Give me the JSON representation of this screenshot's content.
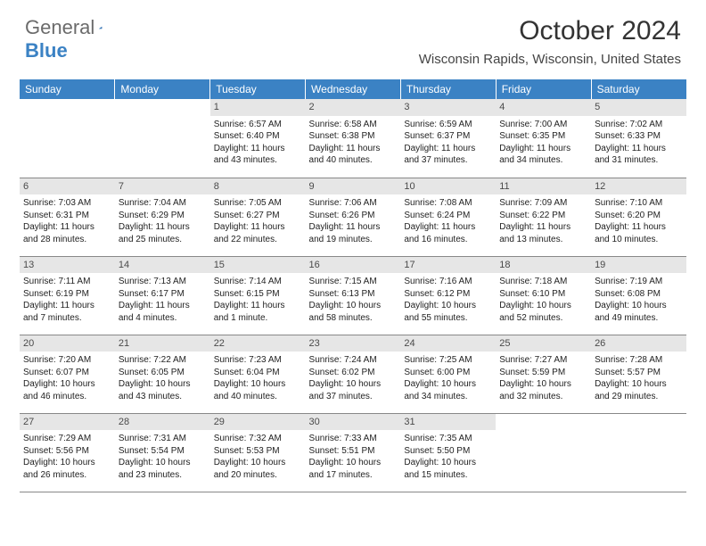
{
  "brand": {
    "text1": "General",
    "text2": "Blue"
  },
  "title": "October 2024",
  "location": "Wisconsin Rapids, Wisconsin, United States",
  "colors": {
    "header_bg": "#3b82c4",
    "daynum_bg": "#e6e6e6"
  },
  "day_headers": [
    "Sunday",
    "Monday",
    "Tuesday",
    "Wednesday",
    "Thursday",
    "Friday",
    "Saturday"
  ],
  "weeks": [
    [
      null,
      null,
      {
        "n": "1",
        "sr": "Sunrise: 6:57 AM",
        "ss": "Sunset: 6:40 PM",
        "dl": "Daylight: 11 hours and 43 minutes."
      },
      {
        "n": "2",
        "sr": "Sunrise: 6:58 AM",
        "ss": "Sunset: 6:38 PM",
        "dl": "Daylight: 11 hours and 40 minutes."
      },
      {
        "n": "3",
        "sr": "Sunrise: 6:59 AM",
        "ss": "Sunset: 6:37 PM",
        "dl": "Daylight: 11 hours and 37 minutes."
      },
      {
        "n": "4",
        "sr": "Sunrise: 7:00 AM",
        "ss": "Sunset: 6:35 PM",
        "dl": "Daylight: 11 hours and 34 minutes."
      },
      {
        "n": "5",
        "sr": "Sunrise: 7:02 AM",
        "ss": "Sunset: 6:33 PM",
        "dl": "Daylight: 11 hours and 31 minutes."
      }
    ],
    [
      {
        "n": "6",
        "sr": "Sunrise: 7:03 AM",
        "ss": "Sunset: 6:31 PM",
        "dl": "Daylight: 11 hours and 28 minutes."
      },
      {
        "n": "7",
        "sr": "Sunrise: 7:04 AM",
        "ss": "Sunset: 6:29 PM",
        "dl": "Daylight: 11 hours and 25 minutes."
      },
      {
        "n": "8",
        "sr": "Sunrise: 7:05 AM",
        "ss": "Sunset: 6:27 PM",
        "dl": "Daylight: 11 hours and 22 minutes."
      },
      {
        "n": "9",
        "sr": "Sunrise: 7:06 AM",
        "ss": "Sunset: 6:26 PM",
        "dl": "Daylight: 11 hours and 19 minutes."
      },
      {
        "n": "10",
        "sr": "Sunrise: 7:08 AM",
        "ss": "Sunset: 6:24 PM",
        "dl": "Daylight: 11 hours and 16 minutes."
      },
      {
        "n": "11",
        "sr": "Sunrise: 7:09 AM",
        "ss": "Sunset: 6:22 PM",
        "dl": "Daylight: 11 hours and 13 minutes."
      },
      {
        "n": "12",
        "sr": "Sunrise: 7:10 AM",
        "ss": "Sunset: 6:20 PM",
        "dl": "Daylight: 11 hours and 10 minutes."
      }
    ],
    [
      {
        "n": "13",
        "sr": "Sunrise: 7:11 AM",
        "ss": "Sunset: 6:19 PM",
        "dl": "Daylight: 11 hours and 7 minutes."
      },
      {
        "n": "14",
        "sr": "Sunrise: 7:13 AM",
        "ss": "Sunset: 6:17 PM",
        "dl": "Daylight: 11 hours and 4 minutes."
      },
      {
        "n": "15",
        "sr": "Sunrise: 7:14 AM",
        "ss": "Sunset: 6:15 PM",
        "dl": "Daylight: 11 hours and 1 minute."
      },
      {
        "n": "16",
        "sr": "Sunrise: 7:15 AM",
        "ss": "Sunset: 6:13 PM",
        "dl": "Daylight: 10 hours and 58 minutes."
      },
      {
        "n": "17",
        "sr": "Sunrise: 7:16 AM",
        "ss": "Sunset: 6:12 PM",
        "dl": "Daylight: 10 hours and 55 minutes."
      },
      {
        "n": "18",
        "sr": "Sunrise: 7:18 AM",
        "ss": "Sunset: 6:10 PM",
        "dl": "Daylight: 10 hours and 52 minutes."
      },
      {
        "n": "19",
        "sr": "Sunrise: 7:19 AM",
        "ss": "Sunset: 6:08 PM",
        "dl": "Daylight: 10 hours and 49 minutes."
      }
    ],
    [
      {
        "n": "20",
        "sr": "Sunrise: 7:20 AM",
        "ss": "Sunset: 6:07 PM",
        "dl": "Daylight: 10 hours and 46 minutes."
      },
      {
        "n": "21",
        "sr": "Sunrise: 7:22 AM",
        "ss": "Sunset: 6:05 PM",
        "dl": "Daylight: 10 hours and 43 minutes."
      },
      {
        "n": "22",
        "sr": "Sunrise: 7:23 AM",
        "ss": "Sunset: 6:04 PM",
        "dl": "Daylight: 10 hours and 40 minutes."
      },
      {
        "n": "23",
        "sr": "Sunrise: 7:24 AM",
        "ss": "Sunset: 6:02 PM",
        "dl": "Daylight: 10 hours and 37 minutes."
      },
      {
        "n": "24",
        "sr": "Sunrise: 7:25 AM",
        "ss": "Sunset: 6:00 PM",
        "dl": "Daylight: 10 hours and 34 minutes."
      },
      {
        "n": "25",
        "sr": "Sunrise: 7:27 AM",
        "ss": "Sunset: 5:59 PM",
        "dl": "Daylight: 10 hours and 32 minutes."
      },
      {
        "n": "26",
        "sr": "Sunrise: 7:28 AM",
        "ss": "Sunset: 5:57 PM",
        "dl": "Daylight: 10 hours and 29 minutes."
      }
    ],
    [
      {
        "n": "27",
        "sr": "Sunrise: 7:29 AM",
        "ss": "Sunset: 5:56 PM",
        "dl": "Daylight: 10 hours and 26 minutes."
      },
      {
        "n": "28",
        "sr": "Sunrise: 7:31 AM",
        "ss": "Sunset: 5:54 PM",
        "dl": "Daylight: 10 hours and 23 minutes."
      },
      {
        "n": "29",
        "sr": "Sunrise: 7:32 AM",
        "ss": "Sunset: 5:53 PM",
        "dl": "Daylight: 10 hours and 20 minutes."
      },
      {
        "n": "30",
        "sr": "Sunrise: 7:33 AM",
        "ss": "Sunset: 5:51 PM",
        "dl": "Daylight: 10 hours and 17 minutes."
      },
      {
        "n": "31",
        "sr": "Sunrise: 7:35 AM",
        "ss": "Sunset: 5:50 PM",
        "dl": "Daylight: 10 hours and 15 minutes."
      },
      null,
      null
    ]
  ]
}
